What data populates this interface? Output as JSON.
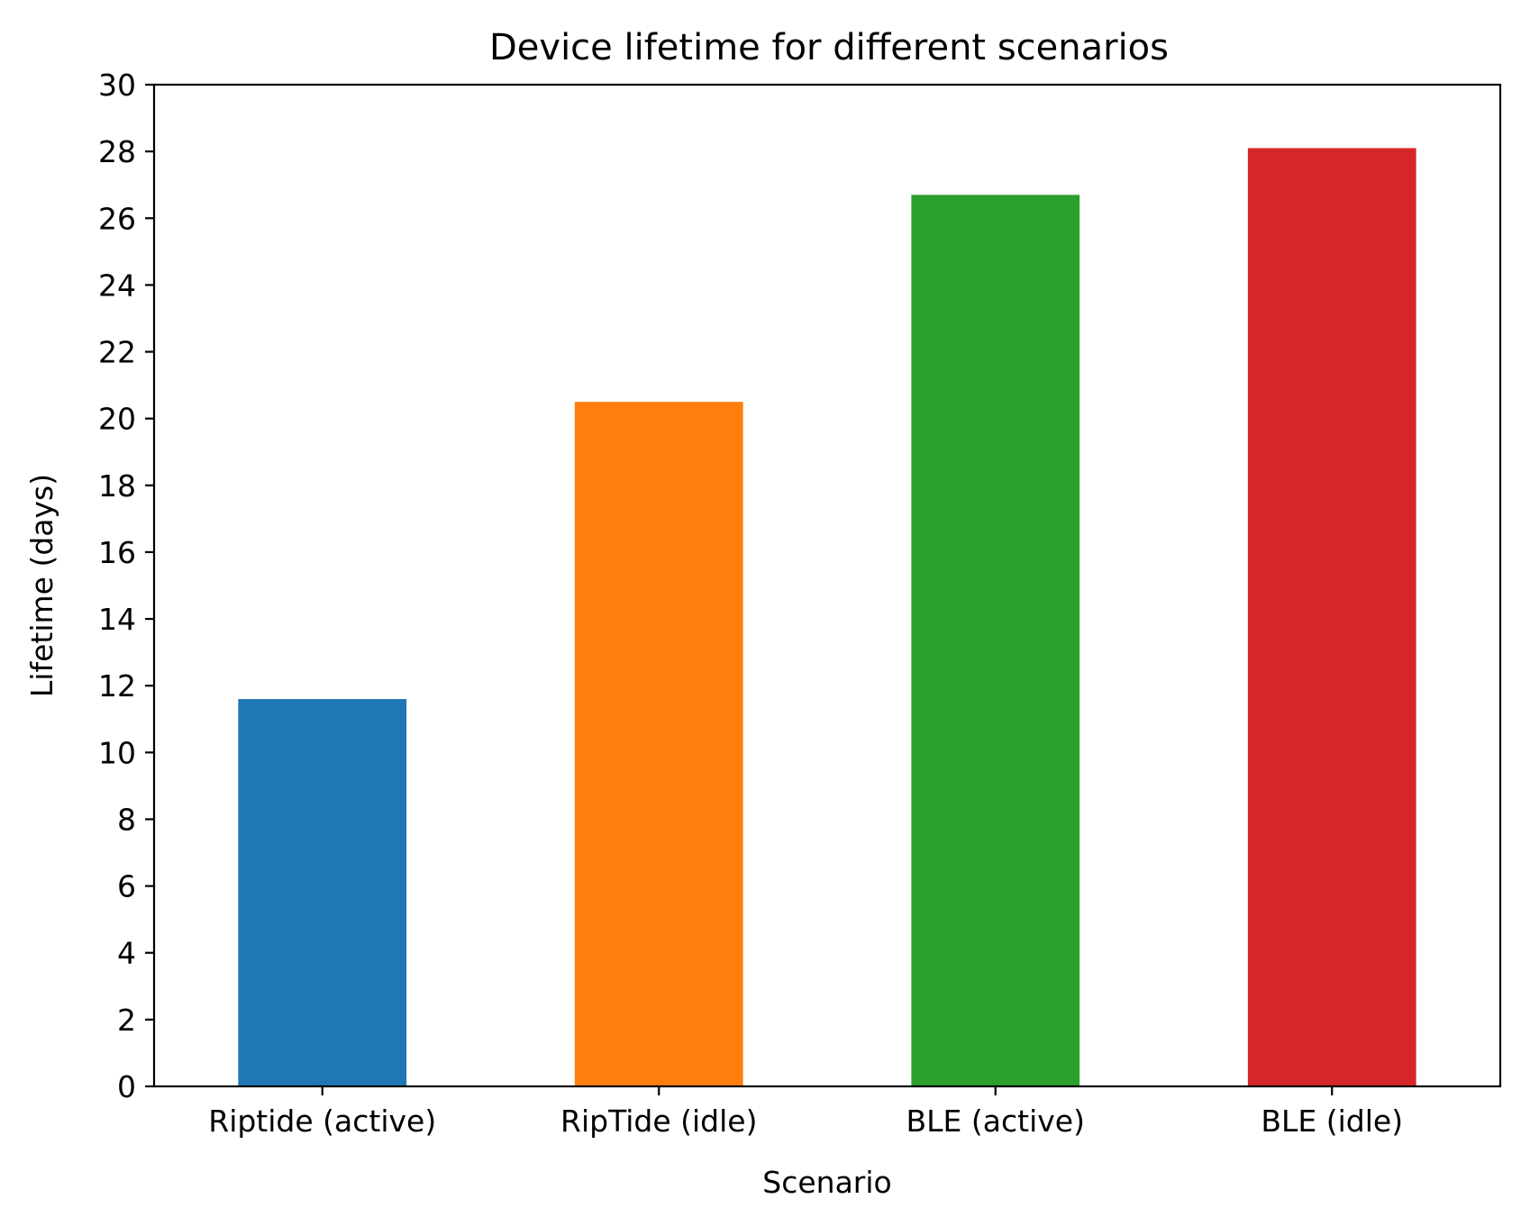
{
  "chart_data": {
    "type": "bar",
    "title": "Device lifetime for different scenarios",
    "xlabel": "Scenario",
    "ylabel": "Lifetime (days)",
    "categories": [
      "Riptide (active)",
      "RipTide (idle)",
      "BLE (active)",
      "BLE (idle)"
    ],
    "values": [
      11.6,
      20.5,
      26.7,
      28.1
    ],
    "colors": [
      "#1f77b4",
      "#ff7f0e",
      "#2ca02c",
      "#d62728"
    ],
    "ylim": [
      0,
      30
    ],
    "yticks": [
      0,
      2,
      4,
      6,
      8,
      10,
      12,
      14,
      16,
      18,
      20,
      22,
      24,
      26,
      28,
      30
    ],
    "grid": false,
    "legend": "none"
  }
}
